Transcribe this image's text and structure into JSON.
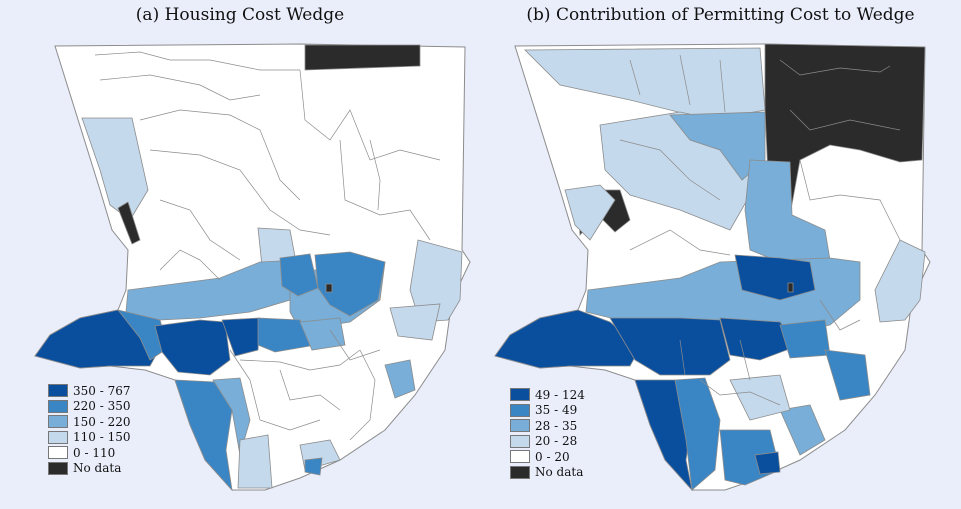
{
  "colors": {
    "c5": "#0a4f9e",
    "c4": "#3a86c4",
    "c3": "#78aed7",
    "c2": "#c4d9ec",
    "c1": "#ffffff",
    "nodata": "#2b2b2b",
    "border": "#8c8c8c",
    "background": "#eaeefb"
  },
  "panel_a": {
    "title": "(a) Housing Cost Wedge",
    "legend": [
      {
        "label": "350 - 767",
        "class": "c5"
      },
      {
        "label": "220 - 350",
        "class": "c4"
      },
      {
        "label": "150 - 220",
        "class": "c3"
      },
      {
        "label": "110 - 150",
        "class": "c2"
      },
      {
        "label": "0 - 110",
        "class": "c1"
      },
      {
        "label": "No data",
        "class": "nodata"
      }
    ]
  },
  "panel_b": {
    "title": "(b) Contribution of Permitting Cost to Wedge",
    "legend": [
      {
        "label": "49 - 124",
        "class": "c5"
      },
      {
        "label": "35 - 49",
        "class": "c4"
      },
      {
        "label": "28 - 35",
        "class": "c3"
      },
      {
        "label": "20 - 28",
        "class": "c2"
      },
      {
        "label": "0 - 20",
        "class": "c1"
      },
      {
        "label": "No data",
        "class": "nodata"
      }
    ]
  }
}
